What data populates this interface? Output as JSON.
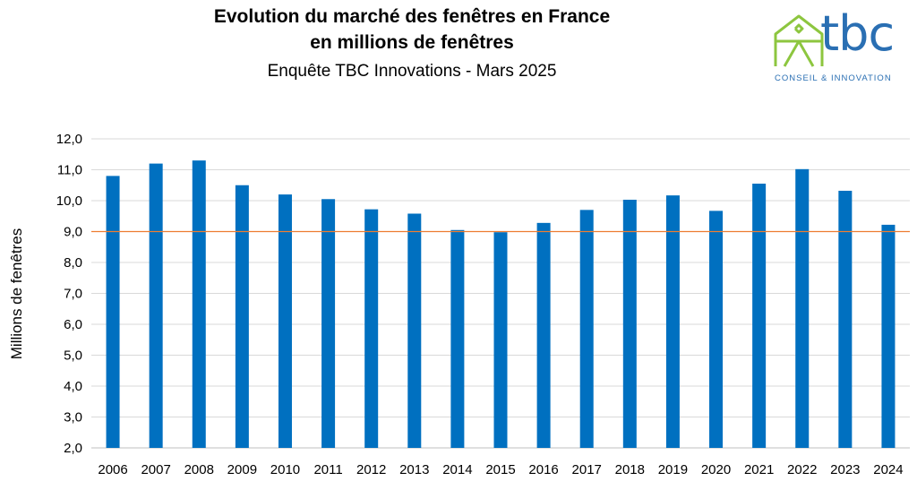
{
  "chart_data": {
    "type": "bar",
    "title_line1": "Evolution du marché des fenêtres en France",
    "title_line2": "en millions de fenêtres",
    "subtitle": "Enquête TBC Innovations - Mars 2025",
    "xlabel": "",
    "ylabel": "Millions de fenêtres",
    "categories": [
      "2006",
      "2007",
      "2008",
      "2009",
      "2010",
      "2011",
      "2012",
      "2013",
      "2014",
      "2015",
      "2016",
      "2017",
      "2018",
      "2019",
      "2020",
      "2021",
      "2022",
      "2023",
      "2024"
    ],
    "values": [
      10.8,
      11.2,
      11.3,
      10.5,
      10.2,
      10.05,
      9.72,
      9.58,
      9.05,
      8.98,
      9.28,
      9.7,
      10.03,
      10.17,
      9.67,
      10.55,
      11.02,
      10.32,
      9.22
    ],
    "ylim": [
      2.0,
      12.0
    ],
    "yticks": [
      "2,0",
      "3,0",
      "4,0",
      "5,0",
      "6,0",
      "7,0",
      "8,0",
      "9,0",
      "10,0",
      "11,0",
      "12,0"
    ],
    "reference_line": 9.0,
    "grid": true,
    "bar_color": "#0070c0",
    "reference_line_color": "#ed7d31"
  },
  "logo": {
    "text": "tbc",
    "tagline": "CONSEIL & INNOVATION",
    "house_color": "#8dc63f",
    "text_color": "#2a6fb3"
  }
}
